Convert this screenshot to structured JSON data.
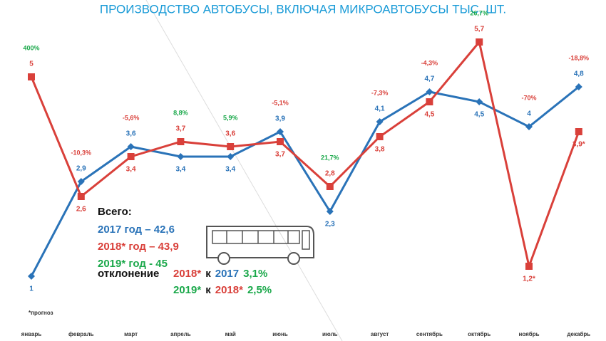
{
  "chart_data": {
    "type": "line",
    "title": "ПРОИЗВОДСТВО АВТОБУСЫ, ВКЛЮЧАЯ МИКРОАВТОБУСЫ ТЫС. ШТ.",
    "categories": [
      "январь",
      "февраль",
      "март",
      "апрель",
      "май",
      "июнь",
      "июль",
      "август",
      "сентябрь",
      "октябрь",
      "ноябрь",
      "декабрь"
    ],
    "series": [
      {
        "name": "2017",
        "color": "#2a73b8",
        "marker": "diamond",
        "values": [
          1,
          2.9,
          3.6,
          3.4,
          3.4,
          3.9,
          2.3,
          4.1,
          4.7,
          4.5,
          4,
          4.8
        ],
        "value_labels": [
          "1",
          "2,9",
          "3,6",
          "3,4",
          "3,4",
          "3,9",
          "2,3",
          "4,1",
          "4,7",
          "4,5",
          "4",
          "4,8"
        ]
      },
      {
        "name": "2018*",
        "color": "#d9403a",
        "marker": "square",
        "values": [
          5,
          2.6,
          3.4,
          3.7,
          3.6,
          3.7,
          2.8,
          3.8,
          4.5,
          5.7,
          1.2,
          3.9
        ],
        "value_labels": [
          "5",
          "2,6",
          "3,4",
          "3,7",
          "3,6",
          "3,7",
          "2,8",
          "3,8",
          "4,5",
          "5,7",
          "1,2*",
          "3,9*"
        ]
      }
    ],
    "changes": [
      {
        "label": "400%",
        "color": "#1aa84a"
      },
      {
        "label": "-10,3%",
        "color": "#d9403a"
      },
      {
        "label": "-5,6%",
        "color": "#d9403a"
      },
      {
        "label": "8,8%",
        "color": "#1aa84a"
      },
      {
        "label": "5,9%",
        "color": "#1aa84a"
      },
      {
        "label": "-5,1%",
        "color": "#d9403a"
      },
      {
        "label": "21,7%",
        "color": "#1aa84a"
      },
      {
        "label": "-7,3%",
        "color": "#d9403a"
      },
      {
        "label": "-4,3%",
        "color": "#d9403a"
      },
      {
        "label": "26,7%",
        "color": "#1aa84a"
      },
      {
        "label": "-70%",
        "color": "#d9403a"
      },
      {
        "label": "-18,8%",
        "color": "#d9403a"
      }
    ],
    "summary": {
      "heading": "Всего:",
      "totals": [
        {
          "text": "2017 год – 42,6",
          "color": "#2a73b8"
        },
        {
          "text": "2018* год – 43,9",
          "color": "#d9403a"
        },
        {
          "text": "2019* год - 45",
          "color": "#1aa84a"
        }
      ],
      "deviation": {
        "label": "отклонение",
        "rows": [
          [
            {
              "text": "2018*",
              "color": "#d9403a"
            },
            {
              "text": "к",
              "color": "#111"
            },
            {
              "text": "2017",
              "color": "#2a73b8"
            },
            {
              "text": "3,1%",
              "color": "#1aa84a"
            }
          ],
          [
            {
              "text": "2019*",
              "color": "#1aa84a"
            },
            {
              "text": "к",
              "color": "#111"
            },
            {
              "text": "2018*",
              "color": "#d9403a"
            },
            {
              "text": "2,5%",
              "color": "#1aa84a"
            }
          ]
        ]
      }
    },
    "footnote": "*прогноз"
  }
}
